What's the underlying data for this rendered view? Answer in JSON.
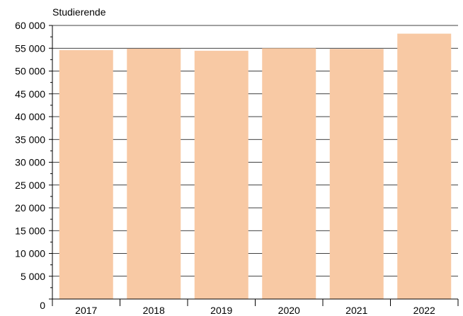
{
  "chart_data": {
    "type": "bar",
    "title": "",
    "xlabel": "",
    "ylabel": "Studierende",
    "categories": [
      "2017",
      "2018",
      "2019",
      "2020",
      "2021",
      "2022"
    ],
    "values": [
      54600,
      54900,
      54450,
      55000,
      54850,
      58200
    ],
    "ylim": [
      0,
      60000
    ],
    "y_ticks": [
      0,
      5000,
      10000,
      15000,
      20000,
      25000,
      30000,
      35000,
      40000,
      45000,
      50000,
      55000,
      60000
    ],
    "y_tick_labels": [
      "0",
      "5 000",
      "10 000",
      "15 000",
      "20 000",
      "25 000",
      "30 000",
      "35 000",
      "40 000",
      "45 000",
      "50 000",
      "55 000",
      "60 000"
    ],
    "grid": true,
    "minor_ticks": true,
    "legend": "none",
    "bar_color": "#f8c9a4",
    "grid_color": "#000000",
    "axis_color": "#000000"
  }
}
